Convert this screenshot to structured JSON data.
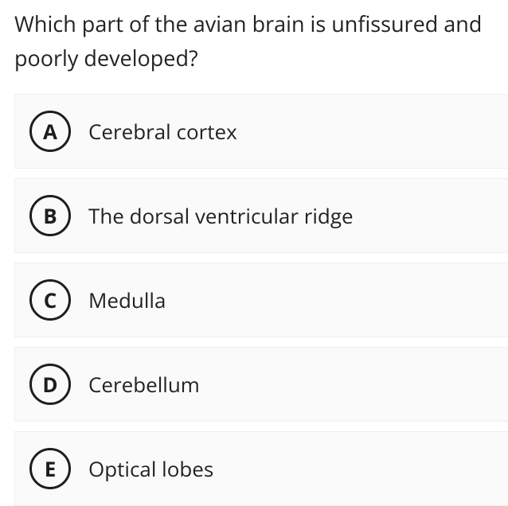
{
  "question": {
    "text": "Which part of the avian brain is unfissured and poorly developed?",
    "text_color": "#222222",
    "font_size": 27
  },
  "options": [
    {
      "letter": "A",
      "text": "Cerebral cortex"
    },
    {
      "letter": "B",
      "text": "The dorsal ventricular ridge"
    },
    {
      "letter": "C",
      "text": "Medulla"
    },
    {
      "letter": "D",
      "text": "Cerebellum"
    },
    {
      "letter": "E",
      "text": "Optical lobes"
    }
  ],
  "styling": {
    "option_bg": "#fafafa",
    "option_border": "#efefef",
    "circle_border_color": "#1e1e1e",
    "circle_border_width": 3.5,
    "option_font_size": 26,
    "letter_font_size": 26,
    "letter_font_weight": 700,
    "background": "#ffffff"
  }
}
